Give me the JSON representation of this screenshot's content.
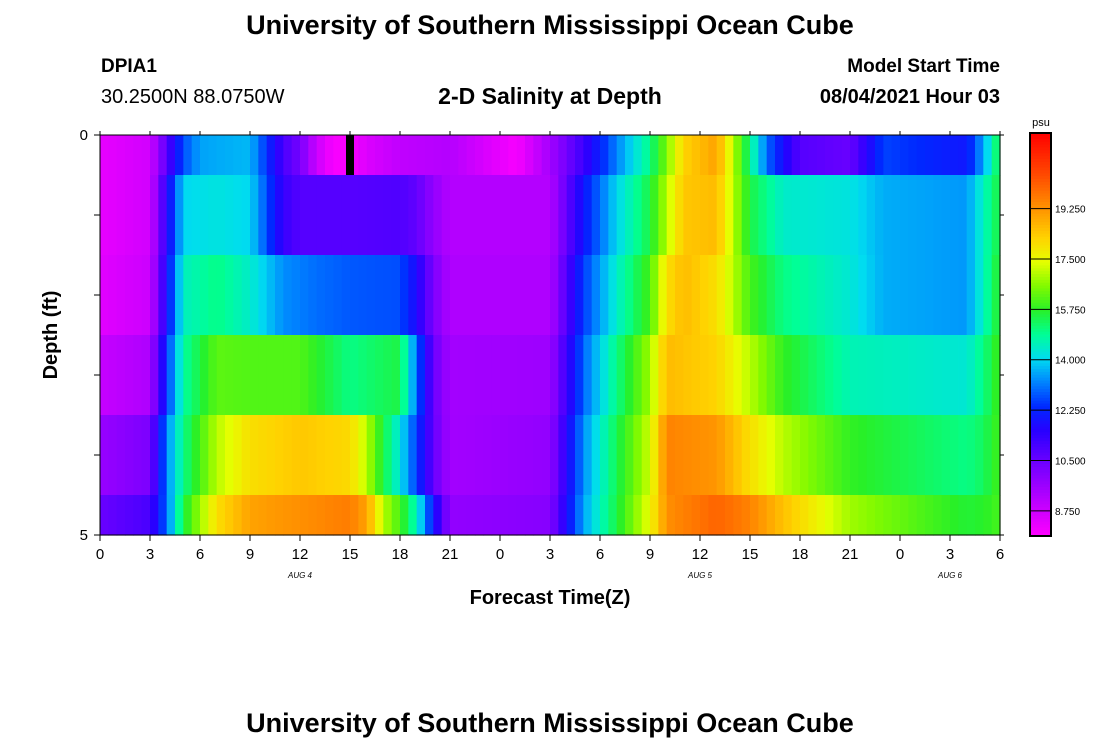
{
  "header": {
    "title": "University of Southern Mississippi Ocean Cube",
    "station_id": "DPIA1",
    "station_coords": "30.2500N  88.0750W",
    "chart_title": "2-D Salinity at Depth",
    "start_label": "Model Start Time",
    "start_value": "08/04/2021 Hour 03"
  },
  "footer": {
    "title": "University of Southern Mississippi Ocean Cube"
  },
  "chart_data": {
    "type": "heatmap",
    "title": "2-D Salinity at Depth",
    "xlabel": "Forecast Time(Z)",
    "ylabel": "Depth (ft)",
    "x_tick_labels": [
      "0",
      "3",
      "6",
      "9",
      "12",
      "15",
      "18",
      "21",
      "0",
      "3",
      "6",
      "9",
      "12",
      "15",
      "18",
      "21",
      "0",
      "3",
      "6"
    ],
    "date_labels": [
      {
        "label": "AUG 4",
        "hour": 12
      },
      {
        "label": "AUG 5",
        "hour": 36
      },
      {
        "label": "AUG 6",
        "hour": 51
      }
    ],
    "x_range_hours": [
      0,
      54
    ],
    "y_tick_labels": [
      {
        "value": 0,
        "label": "0"
      },
      {
        "value": 1,
        "label": ""
      },
      {
        "value": 2,
        "label": ""
      },
      {
        "value": 3,
        "label": ""
      },
      {
        "value": 4,
        "label": ""
      },
      {
        "value": 5,
        "label": "5"
      }
    ],
    "y_range": [
      0,
      5
    ],
    "colorbar": {
      "unit": "psu",
      "min": 7.875,
      "max": 21.875,
      "tick_values": [
        8.75,
        10.5,
        12.25,
        14.0,
        15.75,
        17.5,
        19.25
      ],
      "tick_labels": [
        "8.750",
        "10.500",
        "12.250",
        "14.000",
        "15.750",
        "17.500",
        "19.250"
      ]
    },
    "depth_layers": [
      {
        "depth": [
          0,
          0.5
        ],
        "anchors": [
          [
            0,
            8.3
          ],
          [
            3,
            8.7
          ],
          [
            4,
            10.8
          ],
          [
            5,
            12.7
          ],
          [
            6,
            13.5
          ],
          [
            9,
            13.7
          ],
          [
            10,
            12.4
          ],
          [
            11,
            11.0
          ],
          [
            12,
            10.3
          ],
          [
            13,
            8.8
          ],
          [
            14,
            8.0
          ],
          [
            15,
            8.0
          ],
          [
            16,
            8.5
          ],
          [
            18,
            9.0
          ],
          [
            21,
            9.2
          ],
          [
            25,
            8.0
          ],
          [
            27,
            9.5
          ],
          [
            29,
            11.2
          ],
          [
            31,
            13.2
          ],
          [
            33,
            15.0
          ],
          [
            34,
            16.5
          ],
          [
            35,
            18.2
          ],
          [
            37,
            19.0
          ],
          [
            38,
            17.0
          ],
          [
            39,
            15.0
          ],
          [
            40,
            13.0
          ],
          [
            41,
            11.8
          ],
          [
            42,
            10.8
          ],
          [
            45,
            10.5
          ],
          [
            46,
            11.5
          ],
          [
            47,
            12.6
          ],
          [
            52,
            12.0
          ],
          [
            53,
            13.5
          ],
          [
            54,
            15.6
          ]
        ]
      },
      {
        "depth": [
          0.5,
          1.5
        ],
        "anchors": [
          [
            0,
            8.3
          ],
          [
            3,
            8.7
          ],
          [
            4,
            11.5
          ],
          [
            5,
            14.0
          ],
          [
            7,
            14.2
          ],
          [
            9,
            14.0
          ],
          [
            10,
            12.7
          ],
          [
            11,
            11.3
          ],
          [
            12,
            10.8
          ],
          [
            15,
            10.8
          ],
          [
            18,
            10.9
          ],
          [
            19,
            10.6
          ],
          [
            20,
            9.8
          ],
          [
            21,
            9.2
          ],
          [
            27,
            9.2
          ],
          [
            29,
            12.0
          ],
          [
            31,
            14.0
          ],
          [
            33,
            15.5
          ],
          [
            34,
            17.0
          ],
          [
            35,
            18.4
          ],
          [
            37,
            18.6
          ],
          [
            38,
            17.0
          ],
          [
            39,
            15.5
          ],
          [
            41,
            14.4
          ],
          [
            45,
            14.2
          ],
          [
            47,
            13.6
          ],
          [
            52,
            13.4
          ],
          [
            53,
            14.5
          ],
          [
            54,
            15.6
          ]
        ]
      },
      {
        "depth": [
          1.5,
          2.5
        ],
        "anchors": [
          [
            0,
            8.4
          ],
          [
            3,
            8.8
          ],
          [
            4,
            11.8
          ],
          [
            5,
            14.5
          ],
          [
            7,
            15.0
          ],
          [
            9,
            14.4
          ],
          [
            11,
            13.3
          ],
          [
            13,
            13.0
          ],
          [
            15,
            12.8
          ],
          [
            18,
            12.7
          ],
          [
            19,
            11.7
          ],
          [
            20,
            10.2
          ],
          [
            21,
            9.3
          ],
          [
            27,
            9.3
          ],
          [
            29,
            12.5
          ],
          [
            31,
            14.4
          ],
          [
            33,
            16.0
          ],
          [
            34,
            18.0
          ],
          [
            35,
            18.6
          ],
          [
            37,
            18.0
          ],
          [
            39,
            16.0
          ],
          [
            41,
            15.0
          ],
          [
            45,
            14.3
          ],
          [
            47,
            13.6
          ],
          [
            52,
            13.4
          ],
          [
            53,
            14.5
          ],
          [
            54,
            15.8
          ]
        ]
      },
      {
        "depth": [
          2.5,
          3.5
        ],
        "anchors": [
          [
            0,
            8.9
          ],
          [
            3,
            9.3
          ],
          [
            4,
            12.4
          ],
          [
            5,
            14.8
          ],
          [
            7,
            16.2
          ],
          [
            9,
            16.1
          ],
          [
            12,
            16.1
          ],
          [
            15,
            15.0
          ],
          [
            18,
            15.5
          ],
          [
            19,
            13.0
          ],
          [
            20,
            10.5
          ],
          [
            21,
            9.5
          ],
          [
            27,
            9.6
          ],
          [
            29,
            12.9
          ],
          [
            31,
            15.0
          ],
          [
            33,
            16.8
          ],
          [
            34,
            18.6
          ],
          [
            37,
            18.2
          ],
          [
            39,
            17.0
          ],
          [
            41,
            15.8
          ],
          [
            45,
            14.6
          ],
          [
            52,
            14.3
          ],
          [
            53,
            15.0
          ],
          [
            54,
            16.0
          ]
        ]
      },
      {
        "depth": [
          3.5,
          4.5
        ],
        "anchors": [
          [
            0,
            9.7
          ],
          [
            3,
            10.2
          ],
          [
            4,
            13.2
          ],
          [
            5,
            15.0
          ],
          [
            7,
            17.0
          ],
          [
            9,
            18.0
          ],
          [
            12,
            18.4
          ],
          [
            15,
            18.1
          ],
          [
            16,
            17.0
          ],
          [
            17,
            15.5
          ],
          [
            18,
            14.2
          ],
          [
            19,
            12.5
          ],
          [
            20,
            10.6
          ],
          [
            21,
            9.5
          ],
          [
            27,
            9.8
          ],
          [
            29,
            13.3
          ],
          [
            31,
            15.4
          ],
          [
            33,
            17.2
          ],
          [
            34,
            19.5
          ],
          [
            37,
            19.2
          ],
          [
            39,
            18.0
          ],
          [
            41,
            17.0
          ],
          [
            45,
            15.8
          ],
          [
            52,
            15.0
          ],
          [
            53,
            15.3
          ],
          [
            54,
            16.0
          ]
        ]
      },
      {
        "depth": [
          4.5,
          5
        ],
        "anchors": [
          [
            0,
            10.5
          ],
          [
            3,
            11.0
          ],
          [
            4,
            13.0
          ],
          [
            5,
            15.5
          ],
          [
            7,
            18.0
          ],
          [
            9,
            19.0
          ],
          [
            12,
            19.3
          ],
          [
            15,
            19.6
          ],
          [
            16,
            19.0
          ],
          [
            17,
            17.0
          ],
          [
            18,
            16.0
          ],
          [
            19,
            14.5
          ],
          [
            20,
            12.0
          ],
          [
            21,
            9.8
          ],
          [
            27,
            10.0
          ],
          [
            29,
            13.5
          ],
          [
            31,
            15.5
          ],
          [
            33,
            17.5
          ],
          [
            34,
            19.3
          ],
          [
            37,
            20.0
          ],
          [
            39,
            19.5
          ],
          [
            41,
            18.5
          ],
          [
            45,
            16.8
          ],
          [
            52,
            15.6
          ],
          [
            53,
            15.7
          ],
          [
            54,
            16.0
          ]
        ]
      }
    ],
    "marker": {
      "hour": 15,
      "depth": [
        0,
        0.5
      ],
      "color": "#000000"
    },
    "grid": false
  }
}
